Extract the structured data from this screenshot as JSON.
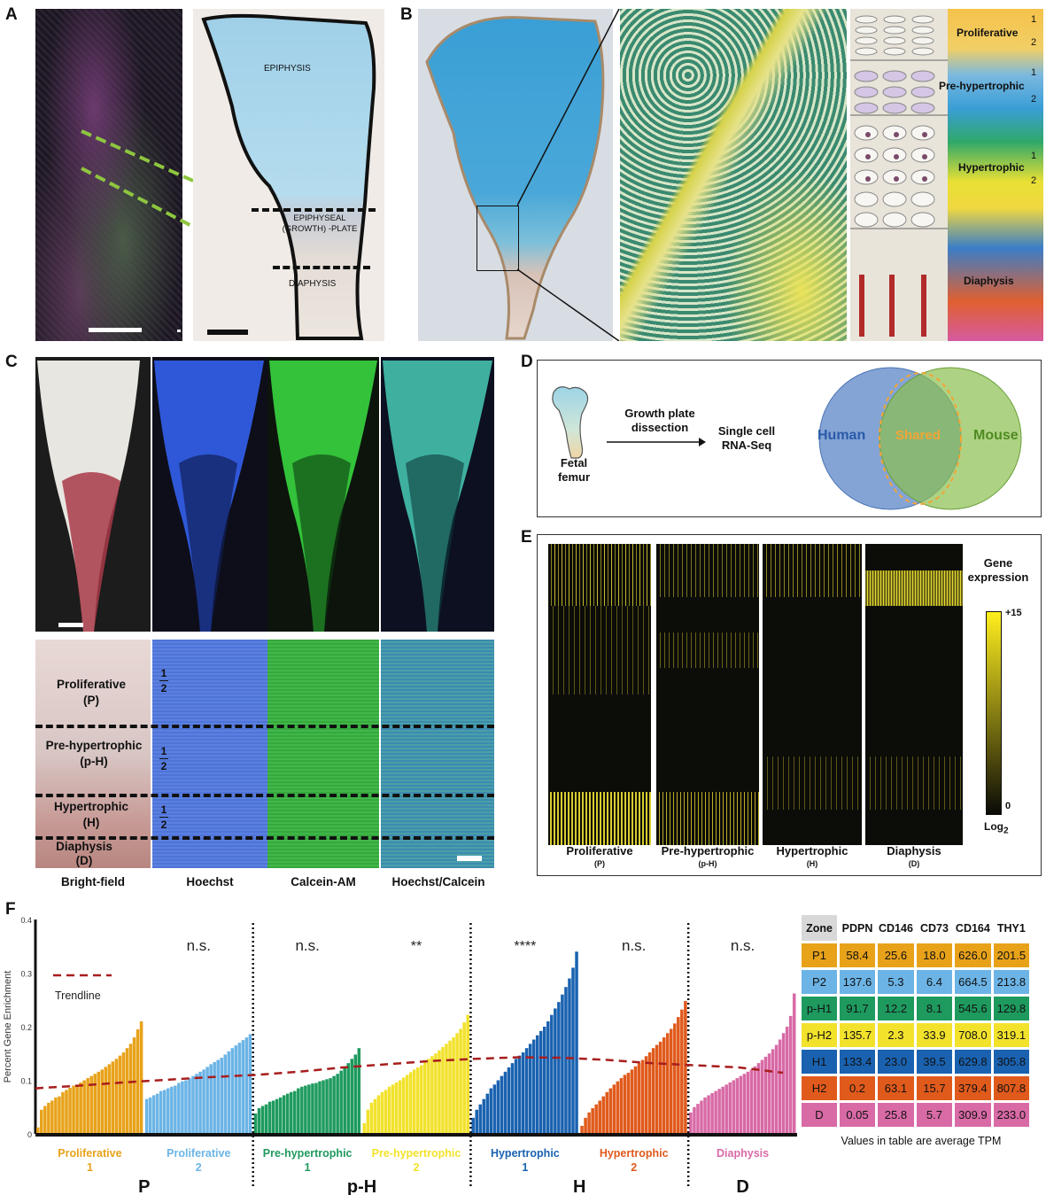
{
  "panels": {
    "a": "A",
    "b": "B",
    "c": "C",
    "d": "D",
    "e": "E",
    "f": "F"
  },
  "panel_a": {
    "epiphysis": "EPIPHYSIS",
    "growth_plate_line1": "EPIPHYSEAL",
    "growth_plate_line2": "(GROWTH) -PLATE",
    "diaphysis": "DIAPHYSIS"
  },
  "panel_b": {
    "zones": [
      {
        "label": "Proliferative",
        "sub_top": "1",
        "sub_bottom": "2"
      },
      {
        "label": "Pre-hypertrophic",
        "sub_top": "1",
        "sub_bottom": "2"
      },
      {
        "label": "Hypertrophic",
        "sub_top": "1",
        "sub_bottom": "2"
      },
      {
        "label": "Diaphysis"
      }
    ]
  },
  "panel_c": {
    "columns": [
      "Bright-field",
      "Hoechst",
      "Calcein-AM",
      "Hoechst/Calcein"
    ],
    "zones": [
      {
        "line1": "Proliferative",
        "line2": "(P)"
      },
      {
        "line1": "Pre-hypertrophic",
        "line2": "(p-H)"
      },
      {
        "line1": "Hypertrophic",
        "line2": "(H)"
      },
      {
        "line1": "Diaphysis",
        "line2": "(D)"
      }
    ],
    "fraction_top": "1",
    "fraction_bottom": "2"
  },
  "panel_d": {
    "step1_line1": "Growth plate",
    "step1_line2": "dissection",
    "step2_line1": "Single cell",
    "step2_line2": "RNA-Seq",
    "femur_line1": "Fetal",
    "femur_line2": "femur",
    "venn_left": "Human",
    "venn_center": "Shared",
    "venn_right": "Mouse",
    "colors": {
      "human": "#5b86c7",
      "mouse": "#8cbf4f",
      "shared": "#f2a535"
    }
  },
  "panel_e": {
    "legend_title_line1": "Gene",
    "legend_title_line2": "expression",
    "legend_max": "+15",
    "legend_min": "0",
    "legend_unit": "Log",
    "legend_unit_sub": "2",
    "columns": [
      {
        "name": "Proliferative",
        "abbr": "(P)"
      },
      {
        "name": "Pre-hypertrophic",
        "abbr": "(p-H)"
      },
      {
        "name": "Hypertrophic",
        "abbr": "(H)"
      },
      {
        "name": "Diaphysis",
        "abbr": "(D)"
      }
    ]
  },
  "chart_data": {
    "type": "bar",
    "ylabel": "Percent Gene Enrichment",
    "ylim": [
      0,
      0.4
    ],
    "yticks": [
      "0",
      "0.1",
      "0.2",
      "0.3",
      "0.4"
    ],
    "trendline_label": "Trendline",
    "series": [
      {
        "name": "Proliferative 1",
        "line1": "Proliferative",
        "line2": "1",
        "color": "#e8a21a",
        "values": [
          0.012,
          0.045,
          0.052,
          0.058,
          0.062,
          0.068,
          0.07,
          0.078,
          0.082,
          0.086,
          0.09,
          0.092,
          0.096,
          0.1,
          0.104,
          0.108,
          0.112,
          0.116,
          0.12,
          0.125,
          0.13,
          0.135,
          0.14,
          0.146,
          0.152,
          0.16,
          0.168,
          0.18,
          0.195,
          0.21
        ]
      },
      {
        "name": "Proliferative 2",
        "line1": "Proliferative",
        "line2": "2",
        "color": "#6cb4e6",
        "values": [
          0.065,
          0.068,
          0.072,
          0.075,
          0.08,
          0.082,
          0.085,
          0.088,
          0.09,
          0.095,
          0.098,
          0.1,
          0.104,
          0.108,
          0.112,
          0.116,
          0.12,
          0.125,
          0.13,
          0.134,
          0.138,
          0.142,
          0.148,
          0.154,
          0.16,
          0.165,
          0.17,
          0.175,
          0.18,
          0.186
        ]
      },
      {
        "name": "Pre-hypertrophic 1",
        "line1": "Pre-hypertrophic",
        "line2": "1",
        "color": "#1e9a5e",
        "values": [
          0.038,
          0.048,
          0.052,
          0.055,
          0.06,
          0.062,
          0.065,
          0.068,
          0.072,
          0.075,
          0.078,
          0.08,
          0.085,
          0.088,
          0.09,
          0.092,
          0.094,
          0.095,
          0.098,
          0.1,
          0.102,
          0.104,
          0.108,
          0.112,
          0.118,
          0.125,
          0.132,
          0.14,
          0.148,
          0.16
        ]
      },
      {
        "name": "Pre-hypertrophic 2",
        "line1": "Pre-hypertrophic",
        "line2": "2",
        "color": "#f2e22c",
        "values": [
          0.02,
          0.045,
          0.058,
          0.065,
          0.072,
          0.078,
          0.082,
          0.088,
          0.092,
          0.096,
          0.1,
          0.105,
          0.11,
          0.115,
          0.12,
          0.124,
          0.128,
          0.134,
          0.14,
          0.145,
          0.15,
          0.156,
          0.162,
          0.168,
          0.174,
          0.18,
          0.188,
          0.196,
          0.208,
          0.222
        ]
      },
      {
        "name": "Hypertrophic 1",
        "line1": "Hypertrophic",
        "line2": "1",
        "color": "#1a62b0",
        "values": [
          0.03,
          0.045,
          0.055,
          0.065,
          0.075,
          0.085,
          0.092,
          0.1,
          0.108,
          0.116,
          0.124,
          0.132,
          0.14,
          0.146,
          0.152,
          0.16,
          0.168,
          0.176,
          0.184,
          0.192,
          0.2,
          0.21,
          0.222,
          0.234,
          0.246,
          0.26,
          0.274,
          0.29,
          0.31,
          0.34
        ]
      },
      {
        "name": "Hypertrophic 2",
        "line1": "Hypertrophic",
        "line2": "2",
        "color": "#e05a1c",
        "values": [
          0.015,
          0.03,
          0.04,
          0.048,
          0.055,
          0.062,
          0.07,
          0.078,
          0.085,
          0.092,
          0.098,
          0.104,
          0.11,
          0.114,
          0.12,
          0.126,
          0.132,
          0.138,
          0.145,
          0.152,
          0.16,
          0.166,
          0.172,
          0.18,
          0.188,
          0.196,
          0.206,
          0.218,
          0.232,
          0.248
        ]
      },
      {
        "name": "Diaphysis",
        "line1": "Diaphysis",
        "line2": "",
        "color": "#d86aa6",
        "values": [
          0.04,
          0.05,
          0.056,
          0.062,
          0.068,
          0.072,
          0.076,
          0.08,
          0.084,
          0.088,
          0.092,
          0.096,
          0.1,
          0.104,
          0.108,
          0.112,
          0.116,
          0.12,
          0.126,
          0.132,
          0.138,
          0.144,
          0.15,
          0.158,
          0.166,
          0.176,
          0.188,
          0.2,
          0.22,
          0.262
        ]
      }
    ],
    "significance": [
      "n.s.",
      "n.s.",
      "**",
      "****",
      "n.s.",
      "n.s."
    ],
    "trendline": [
      0.085,
      0.09,
      0.096,
      0.101,
      0.106,
      0.11,
      0.116,
      0.124,
      0.13,
      0.136,
      0.14,
      0.143,
      0.142,
      0.138,
      0.132,
      0.128,
      0.124,
      0.114
    ],
    "groups": [
      "P",
      "p-H",
      "H",
      "D"
    ]
  },
  "tpm_table": {
    "header": [
      "Zone",
      "PDPN",
      "CD146",
      "CD73",
      "CD164",
      "THY1"
    ],
    "rows": [
      {
        "zone": "P1",
        "color": "#e8a21a",
        "values": [
          "58.4",
          "25.6",
          "18.0",
          "626.0",
          "201.5"
        ]
      },
      {
        "zone": "P2",
        "color": "#6cb4e6",
        "values": [
          "137.6",
          "5.3",
          "6.4",
          "664.5",
          "213.8"
        ]
      },
      {
        "zone": "p-H1",
        "color": "#1e9a5e",
        "values": [
          "91.7",
          "12.2",
          "8.1",
          "545.6",
          "129.8"
        ]
      },
      {
        "zone": "p-H2",
        "color": "#f2e22c",
        "values": [
          "135.7",
          "2.3",
          "33.9",
          "708.0",
          "319.1"
        ]
      },
      {
        "zone": "H1",
        "color": "#1a62b0",
        "values": [
          "133.4",
          "23.0",
          "39.5",
          "629.8",
          "305.8"
        ]
      },
      {
        "zone": "H2",
        "color": "#e05a1c",
        "values": [
          "0.2",
          "63.1",
          "15.7",
          "379.4",
          "807.8"
        ]
      },
      {
        "zone": "D",
        "color": "#d86aa6",
        "values": [
          "0.05",
          "25.8",
          "5.7",
          "309.9",
          "233.0"
        ]
      }
    ],
    "caption": "Values in table are average TPM"
  }
}
